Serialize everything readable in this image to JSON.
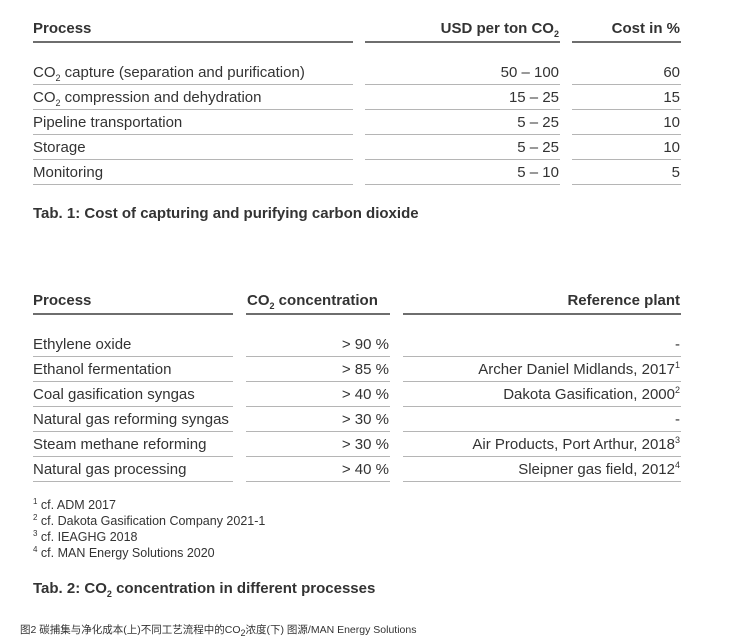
{
  "table1": {
    "headers": {
      "process": "Process",
      "usd_prefix": "USD per ton CO",
      "usd_sub": "2",
      "cost": "Cost in %"
    },
    "rows": [
      {
        "p_pre": "CO",
        "p_sub": "2",
        "p_post": " capture (separation and purification)",
        "usd": "50 – 100",
        "cost": "60"
      },
      {
        "p_pre": "CO",
        "p_sub": "2",
        "p_post": " compression and dehydration",
        "usd": "15 – 25",
        "cost": "15"
      },
      {
        "p_pre": "Pipeline transportation",
        "p_sub": "",
        "p_post": "",
        "usd": "5 – 25",
        "cost": "10"
      },
      {
        "p_pre": "Storage",
        "p_sub": "",
        "p_post": "",
        "usd": "5 – 25",
        "cost": "10"
      },
      {
        "p_pre": "Monitoring",
        "p_sub": "",
        "p_post": "",
        "usd": "5 – 10",
        "cost": "5"
      }
    ],
    "caption": "Tab. 1: Cost of capturing and purifying carbon dioxide"
  },
  "table2": {
    "headers": {
      "process": "Process",
      "conc_pre": "CO",
      "conc_sub": "2",
      "conc_post": " concentration",
      "ref": "Reference plant"
    },
    "rows": [
      {
        "process": "Ethylene oxide",
        "conc": "> 90 %",
        "ref": "-",
        "sup": ""
      },
      {
        "process": "Ethanol fermentation",
        "conc": "> 85 %",
        "ref": "Archer Daniel Midlands, 2017",
        "sup": "1"
      },
      {
        "process": "Coal gasification syngas",
        "conc": "> 40 %",
        "ref": "Dakota Gasification, 2000",
        "sup": "2"
      },
      {
        "process": "Natural gas reforming syngas",
        "conc": "> 30 %",
        "ref": "-",
        "sup": ""
      },
      {
        "process": "Steam methane reforming",
        "conc": "> 30 %",
        "ref": "Air Products, Port Arthur, 2018",
        "sup": "3"
      },
      {
        "process": "Natural gas processing",
        "conc": "> 40 %",
        "ref": "Sleipner gas field, 2012",
        "sup": "4"
      }
    ],
    "footnotes": [
      {
        "n": "1",
        "text": " cf. ADM 2017"
      },
      {
        "n": "2",
        "text": " cf. Dakota Gasification Company 2021-1"
      },
      {
        "n": "3",
        "text": " cf. IEAGHG 2018"
      },
      {
        "n": "4",
        "text": " cf. MAN Energy Solutions 2020"
      }
    ],
    "caption_pre": "Tab. 2: CO",
    "caption_sub": "2",
    "caption_post": " concentration in different processes"
  },
  "figure_caption": {
    "pre": "图2 碳捕集与净化成本(上)不同工艺流程中的CO",
    "sub": "2",
    "post": "浓度(下) 图源/MAN Energy Solutions"
  }
}
